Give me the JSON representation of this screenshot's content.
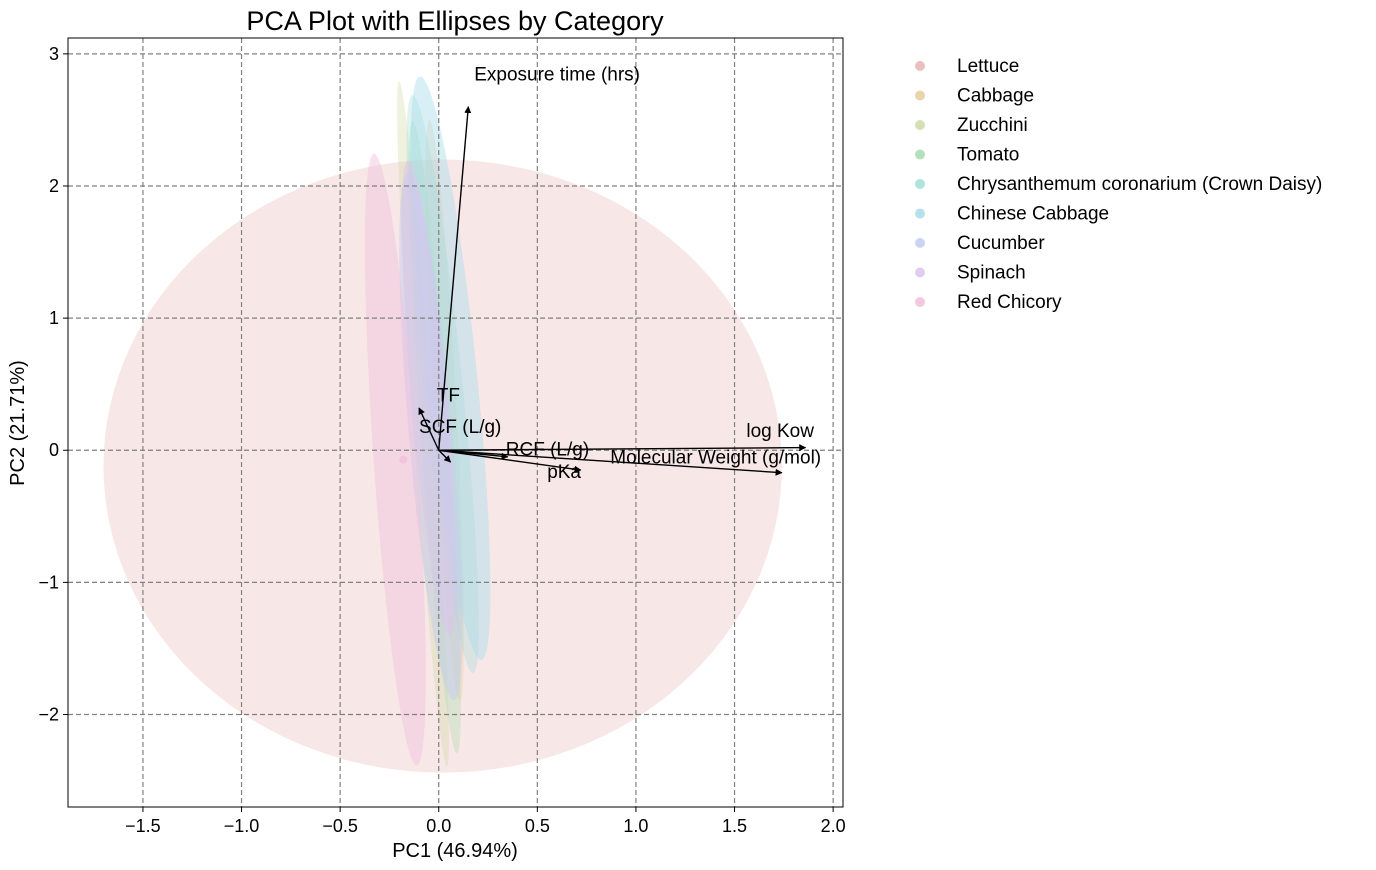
{
  "chart_data": {
    "type": "scatter",
    "title": "PCA Plot with Ellipses by Category",
    "xlabel": "PC1 (46.94%)",
    "ylabel": "PC2 (21.71%)",
    "xlim": [
      -1.88,
      2.05
    ],
    "ylim": [
      -2.7,
      3.12
    ],
    "xticks": [
      -1.5,
      -1.0,
      -0.5,
      0.0,
      0.5,
      1.0,
      1.5,
      2.0
    ],
    "xtick_labels": [
      "−1.5",
      "−1.0",
      "−0.5",
      "0.0",
      "0.5",
      "1.0",
      "1.5",
      "2.0"
    ],
    "yticks": [
      -2,
      -1,
      0,
      1,
      2,
      3
    ],
    "ytick_labels": [
      "−2",
      "−1",
      "0",
      "1",
      "2",
      "3"
    ],
    "grid": true,
    "legend_position": "outside-right",
    "series": [
      {
        "name": "Lettuce",
        "color": "#e8b4b4",
        "ellipse": {
          "cx": 0.02,
          "cy": -0.12,
          "rx": 1.72,
          "ry": 2.32,
          "angle": 0,
          "opacity": 0.32
        }
      },
      {
        "name": "Cabbage",
        "color": "#e6cd9e",
        "ellipse": {
          "cx": 0.03,
          "cy": 0.3,
          "rx": 0.06,
          "ry": 2.2,
          "angle": -3,
          "opacity": 0.35
        }
      },
      {
        "name": "Zucchini",
        "color": "#cfd9a3",
        "ellipse": {
          "cx": -0.08,
          "cy": 0.2,
          "rx": 0.05,
          "ry": 2.6,
          "angle": -4,
          "opacity": 0.35
        }
      },
      {
        "name": "Tomato",
        "color": "#a8dcae",
        "ellipse": {
          "cx": -0.02,
          "cy": 0.1,
          "rx": 0.07,
          "ry": 2.4,
          "angle": -4,
          "opacity": 0.35
        }
      },
      {
        "name": "Chrysanthemum coronarium (Crown Daisy)",
        "color": "#a3ddd6",
        "ellipse": {
          "cx": 0.02,
          "cy": 0.5,
          "rx": 0.1,
          "ry": 2.2,
          "angle": -6,
          "opacity": 0.35
        }
      },
      {
        "name": "Chinese Cabbage",
        "color": "#a8dcea",
        "ellipse": {
          "cx": 0.06,
          "cy": 0.62,
          "rx": 0.13,
          "ry": 2.22,
          "angle": -6,
          "opacity": 0.45
        }
      },
      {
        "name": "Cucumber",
        "color": "#c3ccee",
        "ellipse": {
          "cx": -0.04,
          "cy": 0.1,
          "rx": 0.11,
          "ry": 2.0,
          "angle": -5,
          "opacity": 0.5
        }
      },
      {
        "name": "Spinach",
        "color": "#dcc4ee",
        "ellipse": {
          "cx": -0.05,
          "cy": 0.4,
          "rx": 0.09,
          "ry": 1.8,
          "angle": -5,
          "opacity": 0.5
        }
      },
      {
        "name": "Red Chicory",
        "color": "#f0bedb",
        "ellipse": {
          "cx": -0.22,
          "cy": -0.07,
          "rx": 0.11,
          "ry": 2.32,
          "angle": -4,
          "opacity": 0.45
        }
      }
    ],
    "points": [
      {
        "series": "Red Chicory",
        "x": -0.18,
        "y": -0.07
      }
    ],
    "loadings": [
      {
        "label": "Exposure time  (hrs)",
        "x": 0.15,
        "y": 2.6,
        "label_x": 0.18,
        "label_y": 2.8
      },
      {
        "label": "log Kow",
        "x": 1.86,
        "y": 0.02,
        "label_x": 1.56,
        "label_y": 0.1
      },
      {
        "label": "Molecular Weight (g/mol)",
        "x": 1.74,
        "y": -0.17,
        "label_x": 0.87,
        "label_y": -0.1
      },
      {
        "label": "pKa",
        "x": 0.72,
        "y": -0.15,
        "label_x": 0.55,
        "label_y": -0.21
      },
      {
        "label": "RCF (L/g)",
        "x": 0.35,
        "y": -0.05,
        "label_x": 0.34,
        "label_y": -0.04
      },
      {
        "label": "SCF (L/g)",
        "x": -0.1,
        "y": 0.32,
        "label_x": -0.1,
        "label_y": 0.13
      },
      {
        "label": "TF",
        "x": 0.06,
        "y": -0.09,
        "label_x": -0.01,
        "label_y": 0.37
      }
    ]
  }
}
